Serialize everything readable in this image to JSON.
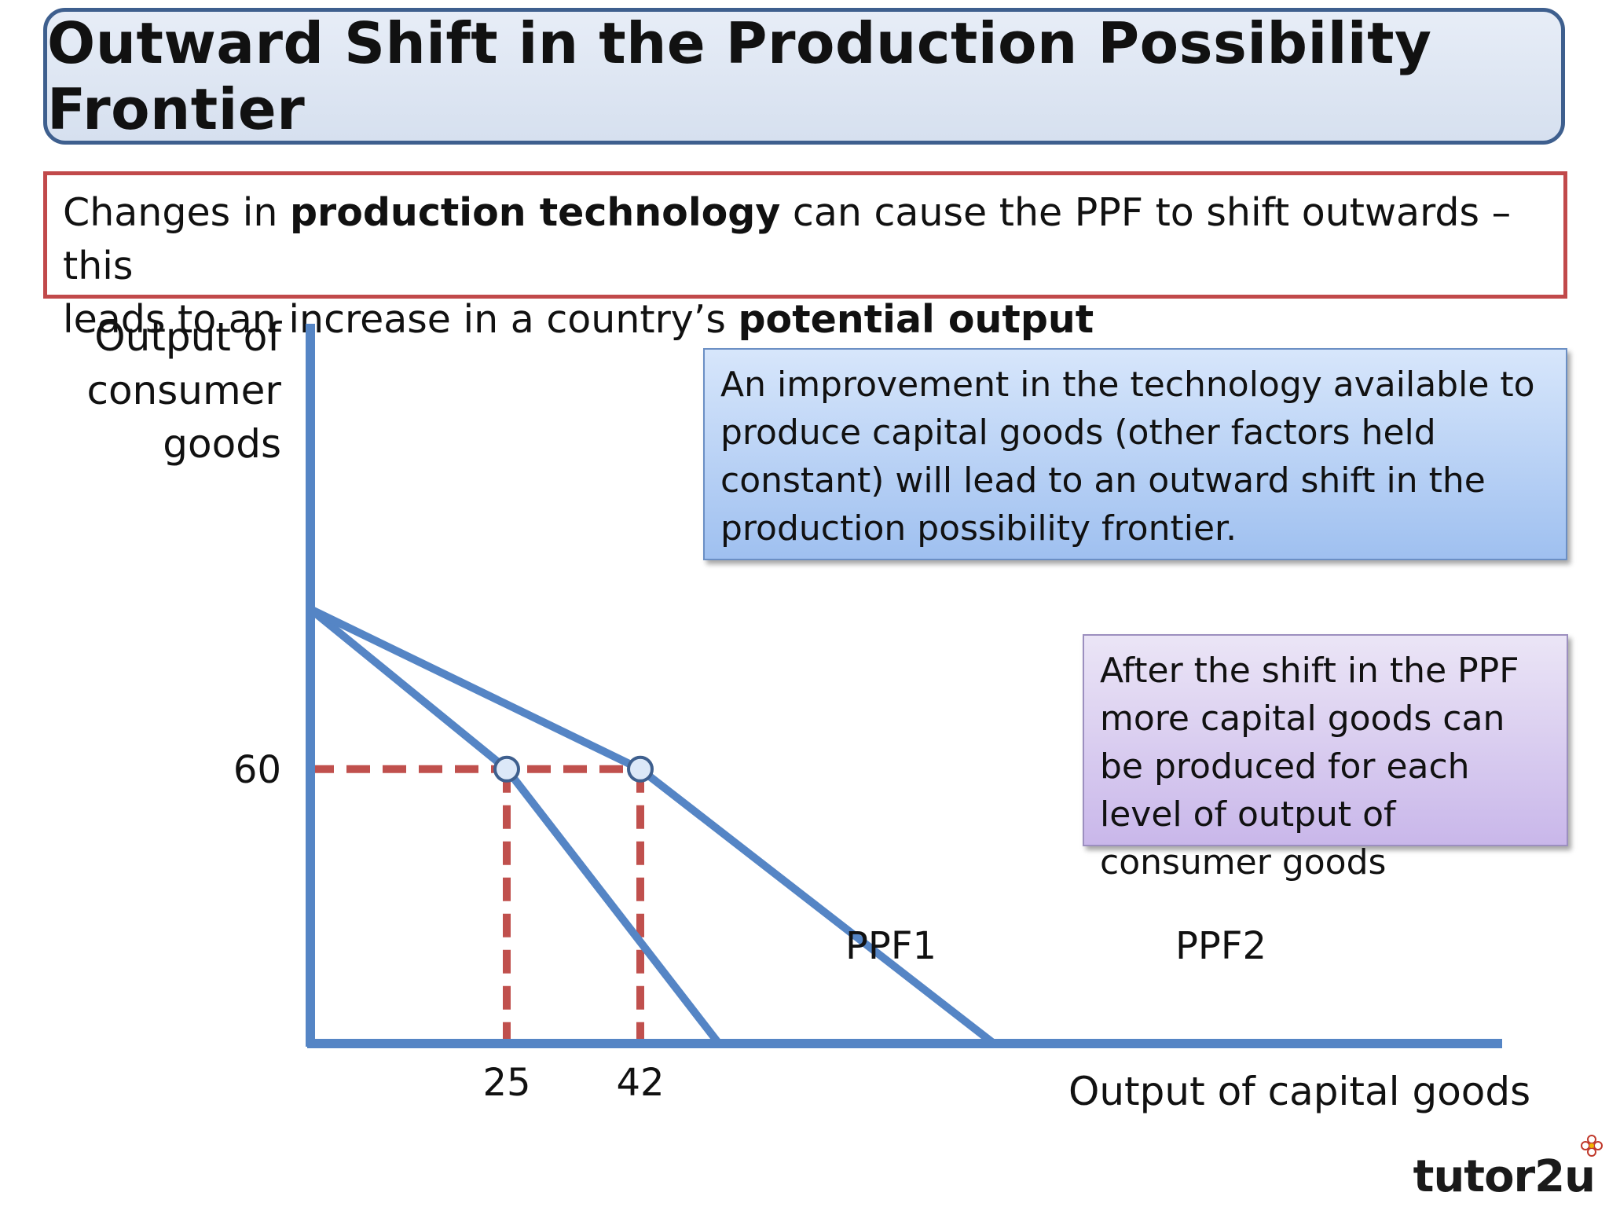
{
  "title": "Outward Shift in the Production Possibility Frontier",
  "intro": {
    "part1": "Changes in ",
    "bold1": "production technology",
    "part2": " can cause the PPF to shift outwards – this",
    "part3": "leads to an increase in a country’s ",
    "bold2": "potential output"
  },
  "note_blue": "An improvement in the technology available to produce capital goods (other factors held constant) will lead to an outward shift in the production possibility frontier.",
  "note_purple": "After the shift in the PPF more capital goods can be produced for each level of output of consumer goods",
  "logo": "tutor2u",
  "colors": {
    "axis": "#5585c5",
    "curve": "#5585c5",
    "guide": "#c0504d",
    "marker_fill": "#dce8f8"
  },
  "chart_data": {
    "type": "line",
    "title": "",
    "ylabel": "Output of consumer goods",
    "xlabel": "Output of capital goods",
    "x_ticks": [
      25,
      42
    ],
    "y_ticks": [
      60
    ],
    "y_intercept": 95,
    "series": [
      {
        "name": "PPF1",
        "x": [
          0,
          25,
          52
        ],
        "y": [
          95,
          60,
          0
        ]
      },
      {
        "name": "PPF2",
        "x": [
          0,
          42,
          87
        ],
        "y": [
          95,
          60,
          0
        ]
      }
    ],
    "points": [
      {
        "x": 25,
        "y": 60
      },
      {
        "x": 42,
        "y": 60
      }
    ],
    "guides": [
      {
        "from": [
          0,
          60
        ],
        "to": [
          42,
          60
        ]
      },
      {
        "from": [
          25,
          60
        ],
        "to": [
          25,
          0
        ]
      },
      {
        "from": [
          42,
          60
        ],
        "to": [
          42,
          0
        ]
      }
    ]
  }
}
